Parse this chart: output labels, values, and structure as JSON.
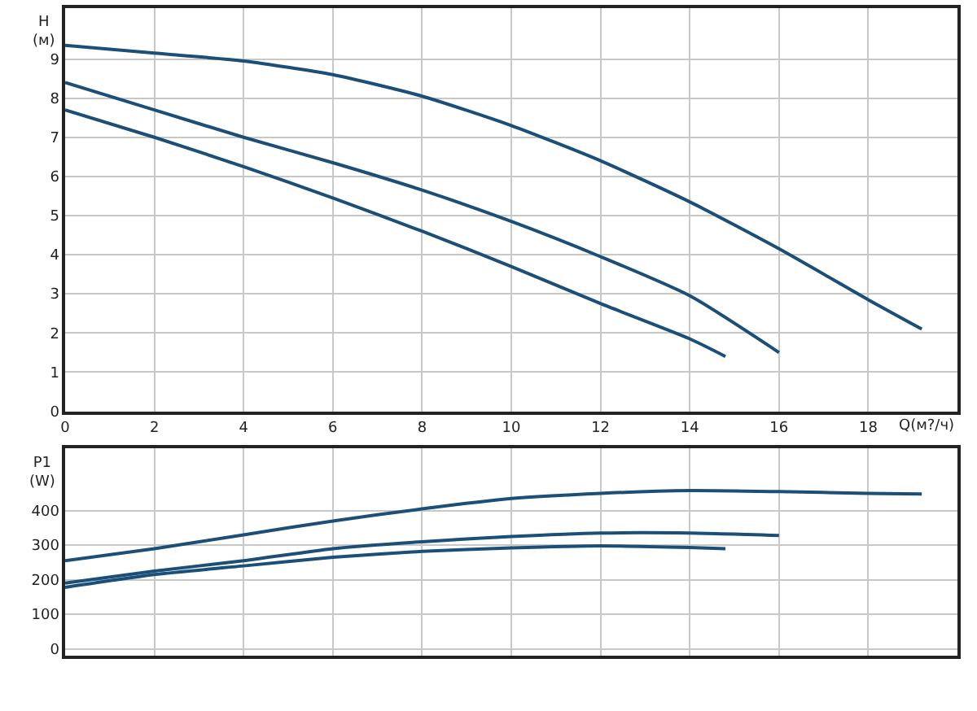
{
  "chart_data": [
    {
      "type": "line",
      "ylabel": "H\n(м)",
      "xlabel": "Q(м?/ч)",
      "xlim": [
        0,
        20
      ],
      "xticks": [
        0,
        2,
        4,
        6,
        8,
        10,
        12,
        14,
        16,
        18
      ],
      "ylim": [
        0,
        10.3
      ],
      "yticks": [
        0,
        1,
        2,
        3,
        4,
        5,
        6,
        7,
        8,
        9
      ],
      "grid": true,
      "series": [
        {
          "color": "#1b4f78",
          "x": [
            0,
            2,
            4,
            6,
            8,
            10,
            12,
            14,
            16,
            18,
            19.2
          ],
          "values": [
            9.35,
            9.15,
            8.95,
            8.6,
            8.05,
            7.3,
            6.4,
            5.35,
            4.15,
            2.85,
            2.1
          ]
        },
        {
          "color": "#1b4f78",
          "x": [
            0,
            2,
            4,
            6,
            8,
            10,
            12,
            14,
            16
          ],
          "values": [
            8.4,
            7.7,
            7.0,
            6.35,
            5.65,
            4.85,
            3.95,
            2.95,
            1.5
          ]
        },
        {
          "color": "#1b4f78",
          "x": [
            0,
            2,
            4,
            6,
            8,
            10,
            12,
            14,
            14.8
          ],
          "values": [
            7.7,
            7.0,
            6.25,
            5.45,
            4.6,
            3.7,
            2.75,
            1.85,
            1.4
          ]
        }
      ]
    },
    {
      "type": "line",
      "ylabel": "P1\n(W)",
      "xlim": [
        0,
        20
      ],
      "xticks": [
        0,
        2,
        4,
        6,
        8,
        10,
        12,
        14,
        16,
        18
      ],
      "ylim": [
        -20,
        580
      ],
      "yticks": [
        0,
        100,
        200,
        300,
        400
      ],
      "tick_labels": "y",
      "grid": true,
      "series": [
        {
          "color": "#1b4f78",
          "x": [
            0,
            2,
            4,
            6,
            8,
            10,
            12,
            14,
            16,
            18,
            19.2
          ],
          "values": [
            255,
            290,
            330,
            370,
            405,
            435,
            450,
            458,
            455,
            450,
            448
          ]
        },
        {
          "color": "#1b4f78",
          "x": [
            0,
            2,
            4,
            6,
            8,
            10,
            12,
            14,
            16
          ],
          "values": [
            190,
            225,
            255,
            290,
            310,
            325,
            335,
            335,
            328
          ]
        },
        {
          "color": "#1b4f78",
          "x": [
            0,
            2,
            4,
            6,
            8,
            10,
            12,
            14,
            14.8
          ],
          "values": [
            178,
            215,
            240,
            265,
            282,
            292,
            298,
            293,
            290
          ]
        }
      ]
    }
  ]
}
